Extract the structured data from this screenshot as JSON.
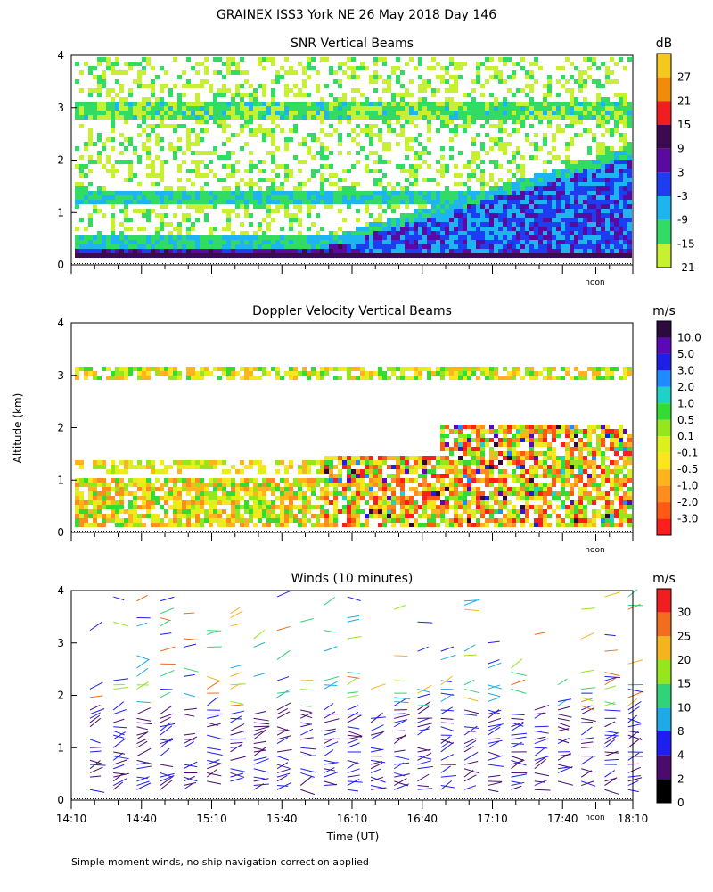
{
  "title": "GRAINEX ISS3 York NE  26 May 2018 Day 146",
  "ylabel": "Altitude (km)",
  "xlabel": "Time (UT)",
  "footnote": "Simple moment winds, no ship navigation correction applied",
  "noon_label": "noon",
  "colors": {
    "snr_scale": [
      "#c8f032",
      "#32dc64",
      "#1eb4f0",
      "#1e3cf0",
      "#5a0aa0",
      "#3c0a50",
      "#f01e1e",
      "#f08c0a",
      "#f5c81e"
    ],
    "doppler_scale": [
      "#ff1e1e",
      "#ff5a14",
      "#ff8c1e",
      "#ffb41e",
      "#fae61e",
      "#dcf01e",
      "#96e61e",
      "#32dc32",
      "#1ed2c8",
      "#1e8cff",
      "#1e1ee6",
      "#5a0ab4",
      "#2d0a3c"
    ],
    "winds_scale": [
      "#000000",
      "#4a0a6e",
      "#1e1ef0",
      "#1eaae6",
      "#32d278",
      "#96e61e",
      "#f5b41e",
      "#f06e1e",
      "#f01e1e"
    ]
  },
  "chart_data": [
    {
      "type": "heatmap",
      "title": "SNR Vertical Beams",
      "units": "dB",
      "xlabel": "",
      "ylabel": "Altitude (km)",
      "x_ticks": [],
      "y_ticks": [
        0,
        1,
        2,
        3,
        4
      ],
      "colorbar_labels": [
        "27",
        "21",
        "15",
        "9",
        "3",
        "-3",
        "-9",
        "-15",
        "-21"
      ],
      "colorbar_values": [
        27,
        21,
        15,
        9,
        3,
        -3,
        -9,
        -15,
        -21
      ],
      "xlim": [
        "14:10",
        "18:10"
      ],
      "ylim": [
        0,
        4
      ]
    },
    {
      "type": "heatmap",
      "title": "Doppler Velocity Vertical Beams",
      "units": "m/s",
      "xlabel": "",
      "ylabel": "Altitude (km)",
      "x_ticks": [],
      "y_ticks": [
        0,
        1,
        2,
        3,
        4
      ],
      "colorbar_labels": [
        "10.0",
        "5.0",
        "3.0",
        "2.0",
        "1.0",
        "0.5",
        "0.1",
        "-0.1",
        "-0.5",
        "-1.0",
        "-2.0",
        "-3.0"
      ],
      "colorbar_values": [
        10.0,
        5.0,
        3.0,
        2.0,
        1.0,
        0.5,
        0.1,
        -0.1,
        -0.5,
        -1.0,
        -2.0,
        -3.0
      ],
      "xlim": [
        "14:10",
        "18:10"
      ],
      "ylim": [
        0,
        4
      ]
    },
    {
      "type": "scatter",
      "title": "Winds (10 minutes)",
      "units": "m/s",
      "xlabel": "Time (UT)",
      "ylabel": "Altitude (km)",
      "x_ticks": [
        "14:10",
        "14:40",
        "15:10",
        "15:40",
        "16:10",
        "16:40",
        "17:10",
        "17:40",
        "18:10"
      ],
      "y_ticks": [
        0,
        1,
        2,
        3,
        4
      ],
      "colorbar_labels": [
        "30",
        "25",
        "20",
        "15",
        "10",
        "8",
        "4",
        "2",
        "0"
      ],
      "colorbar_values": [
        30,
        25,
        20,
        15,
        10,
        8,
        4,
        2,
        0
      ],
      "xlim": [
        "14:10",
        "18:10"
      ],
      "ylim": [
        0,
        4
      ]
    }
  ]
}
